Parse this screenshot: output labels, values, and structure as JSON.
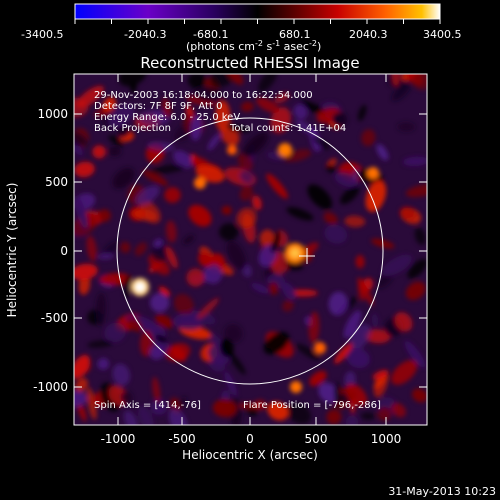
{
  "colorbar": {
    "ticks": [
      "-3400.5",
      "-2040.3",
      "-680.1",
      "680.1",
      "2040.3",
      "3400.5"
    ],
    "units_main": "(photons cm",
    "units_sup1": "-2",
    "units_mid1": " s",
    "units_sup2": "-1",
    "units_mid2": " asec",
    "units_sup3": "-2",
    "units_end": ")",
    "colors": [
      "#0000ff",
      "#6a00c8",
      "#2a0060",
      "#000000",
      "#5a0000",
      "#c80000",
      "#ff6000",
      "#ffc000",
      "#ffffff"
    ]
  },
  "title": "Reconstructed RHESSI Image",
  "annotations": {
    "time": "29-Nov-2003 16:18:04.000 to 16:22:54.000",
    "detectors": "Detectors: 7F 8F 9F, Att 0",
    "energy": "Energy Range: 6.0 - 25.0 keV",
    "method": "Back Projection",
    "counts": "Total counts: 1.41E+04",
    "spin_axis": "Spin Axis = [414,-76]",
    "flare_position": "Flare Position = [-796,-286]"
  },
  "axes": {
    "xlabel": "Heliocentric X (arcsec)",
    "ylabel": "Heliocentric Y (arcsec)",
    "xticks": [
      "-1000",
      "-500",
      "0",
      "500",
      "1000"
    ],
    "yticks": [
      "1000",
      "500",
      "0",
      "-500",
      "-1000"
    ],
    "xlim": [
      -1280,
      1300
    ],
    "ylim": [
      -1280,
      1280
    ]
  },
  "solar_disk": {
    "radius_arcsec": 975,
    "center": [
      0,
      0
    ]
  },
  "spin_axis_marker": [
    414,
    -76
  ],
  "footer": "31-May-2013 10:23"
}
